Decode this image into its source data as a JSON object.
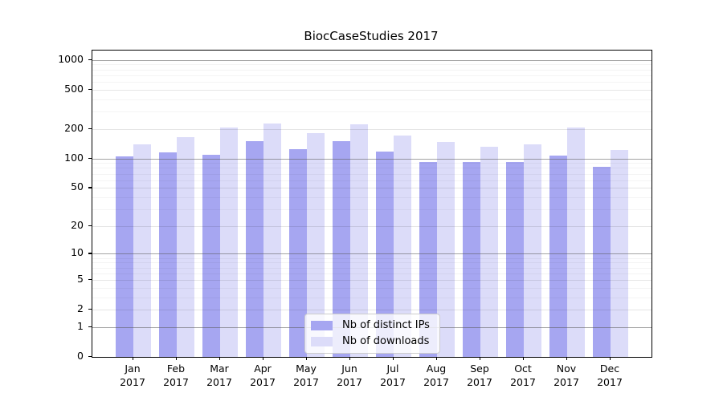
{
  "chart_data": {
    "type": "bar",
    "title": "BiocCaseStudies 2017",
    "categories": [
      "Jan",
      "Feb",
      "Mar",
      "Apr",
      "May",
      "Jun",
      "Jul",
      "Aug",
      "Sep",
      "Oct",
      "Nov",
      "Dec"
    ],
    "year_label": "2017",
    "series": [
      {
        "name": "Nb of distinct IPs",
        "color": "#a6a6f1",
        "values": [
          105,
          116,
          109,
          151,
          124,
          150,
          118,
          93,
          93,
          92,
          108,
          82
        ]
      },
      {
        "name": "Nb of downloads",
        "color": "#dcdcf9",
        "values": [
          139,
          164,
          206,
          228,
          181,
          225,
          170,
          147,
          133,
          140,
          207,
          122
        ]
      }
    ],
    "yscale": "log10(1+x)",
    "ylim": [
      0,
      1250
    ],
    "yticks": [
      0,
      1,
      2,
      5,
      10,
      20,
      50,
      100,
      200,
      500,
      1000
    ],
    "decade_ticks": [
      1,
      10,
      100,
      1000
    ],
    "minor_gridlines": [
      3,
      4,
      6,
      7,
      8,
      9,
      30,
      40,
      60,
      70,
      80,
      90,
      300,
      400,
      600,
      700,
      800,
      900
    ],
    "grid": true,
    "gridlines_over_bars": true,
    "legend_position": "bottom-center",
    "xlabel": "",
    "ylabel": ""
  },
  "colors": {
    "background": "#ffffff",
    "spine": "#000000",
    "decade_gridline": "#8a8a8a",
    "light_gridline": "#e6e6e6",
    "minor_gridline": "#f1f1f1"
  }
}
